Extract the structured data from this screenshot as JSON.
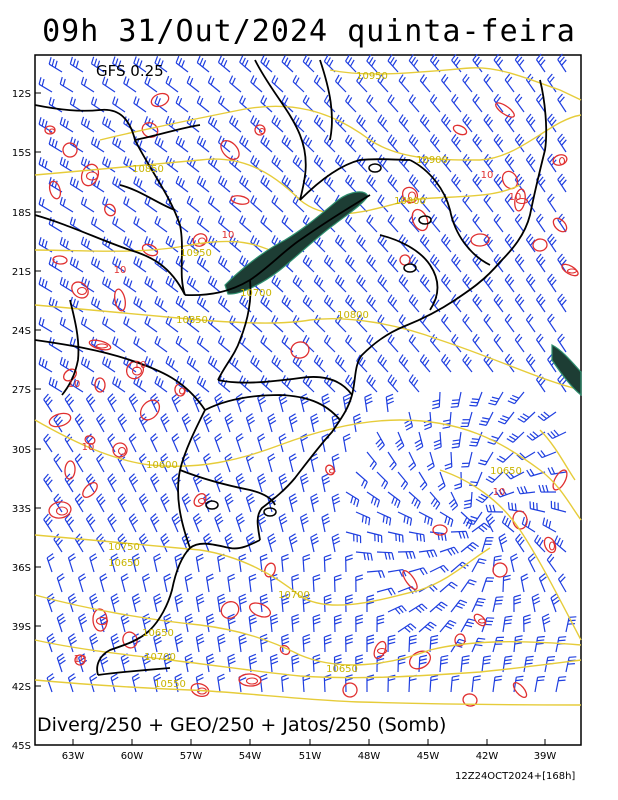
{
  "title": "09h 31/Out/2024 quinta-feira",
  "model": "GFS 0.25",
  "bottom_label": "Diverg/250 + GEO/250 + Jatos/250 (Somb)",
  "run_info": "12Z24OCT2024+[168h]",
  "axes": {
    "lat_labels": [
      "12S",
      "15S",
      "18S",
      "21S",
      "24S",
      "27S",
      "30S",
      "33S",
      "36S",
      "39S",
      "42S",
      "45S"
    ],
    "lon_labels": [
      "63W",
      "60W",
      "57W",
      "54W",
      "51W",
      "48W",
      "45W",
      "42W",
      "39W"
    ]
  },
  "geopotential_labels": [
    {
      "text": "10950"
    },
    {
      "text": "10900"
    },
    {
      "text": "10850"
    },
    {
      "text": "10950"
    },
    {
      "text": "10900"
    },
    {
      "text": "10850"
    },
    {
      "text": "10800"
    },
    {
      "text": "10650"
    },
    {
      "text": "10700"
    },
    {
      "text": "10750"
    },
    {
      "text": "10700"
    },
    {
      "text": "10650"
    },
    {
      "text": "10600"
    },
    {
      "text": "10650"
    },
    {
      "text": "10550"
    },
    {
      "text": "10650"
    },
    {
      "text": "10700"
    }
  ],
  "divergence_labels": [
    {
      "text": "10"
    },
    {
      "text": "10"
    },
    {
      "text": "10"
    },
    {
      "text": "10"
    },
    {
      "text": "10"
    },
    {
      "text": "10"
    },
    {
      "text": "10"
    },
    {
      "text": "10"
    },
    {
      "text": "10"
    }
  ],
  "colors": {
    "wind_barbs": "#1f3fe0",
    "geopotential": "#e6cc3a",
    "divergence": "#e03030",
    "jet_fill": "#1d3d34",
    "jet_outline": "#2f8f6f",
    "coast_border": "#000000"
  }
}
